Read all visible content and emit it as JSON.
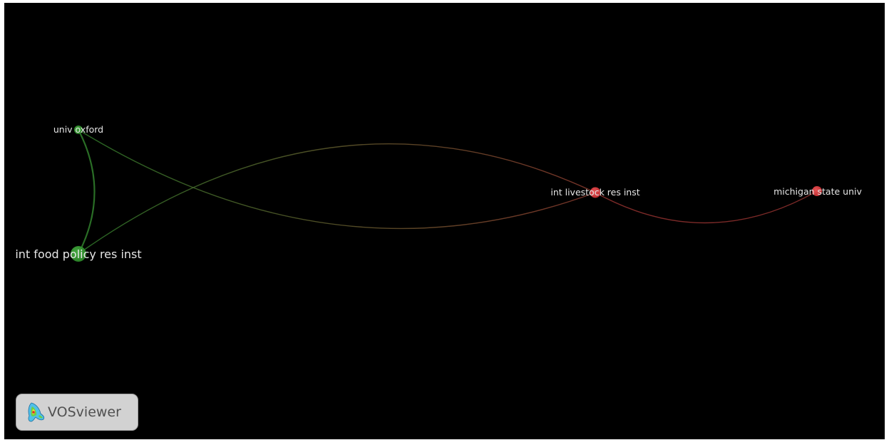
{
  "network": {
    "nodes": [
      {
        "id": "oxford",
        "label": "univ oxford",
        "cluster": "green"
      },
      {
        "id": "ifpri",
        "label": "int food policy res inst",
        "cluster": "green"
      },
      {
        "id": "ilri",
        "label": "int livestock res inst",
        "cluster": "red"
      },
      {
        "id": "msu",
        "label": "michigan state univ",
        "cluster": "red"
      }
    ],
    "links": [
      {
        "source": "oxford",
        "target": "ifpri"
      },
      {
        "source": "oxford",
        "target": "ilri"
      },
      {
        "source": "ifpri",
        "target": "ilri"
      },
      {
        "source": "ilri",
        "target": "msu"
      }
    ],
    "colors": {
      "background": "#000000",
      "green_cluster": "#2f8a2c",
      "red_cluster": "#d2383b",
      "label": "#e6e6e6"
    }
  },
  "badge": {
    "name": "VOSviewer",
    "icon": "vosviewer-logo-icon"
  }
}
